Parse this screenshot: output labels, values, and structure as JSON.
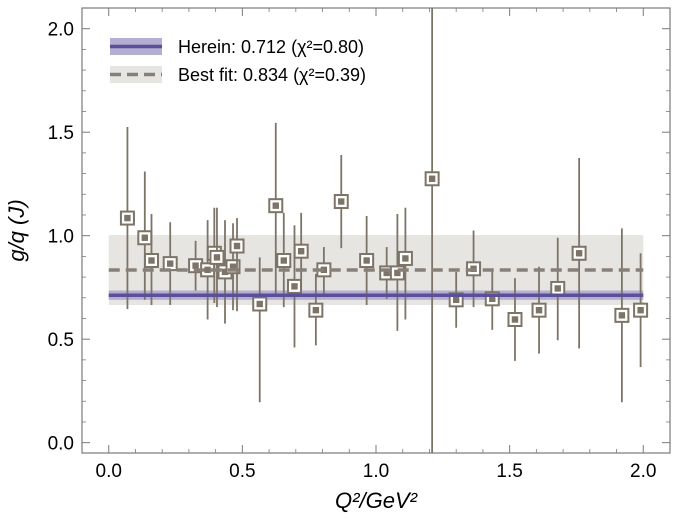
{
  "chart_data": {
    "type": "scatter",
    "xlabel": "Q²/GeV²",
    "ylabel": "g/q (J)",
    "xlim": [
      -0.1,
      2.1
    ],
    "ylim": [
      -0.05,
      2.1
    ],
    "x_ticks": [
      0.0,
      0.5,
      1.0,
      1.5,
      2.0
    ],
    "x_tick_labels": [
      "0.0",
      "0.5",
      "1.0",
      "1.5",
      "2.0"
    ],
    "y_ticks": [
      0.0,
      0.5,
      1.0,
      1.5,
      2.0
    ],
    "y_tick_labels": [
      "0.0",
      "0.5",
      "1.0",
      "1.5",
      "2.0"
    ],
    "grid": false,
    "legend_position": "top-left",
    "legend": [
      {
        "label": "Herein: 0.712 (χ²=0.80)",
        "style": "solid"
      },
      {
        "label": "Best fit: 0.834 (χ²=0.39)",
        "style": "dashed"
      }
    ],
    "bands": [
      {
        "name": "Herein",
        "value": 0.712,
        "low": 0.69,
        "high": 0.735,
        "style": "solid",
        "color": "#5b4f99",
        "band_color": "#b3aed2",
        "x_range": [
          0.0,
          2.0
        ]
      },
      {
        "name": "Best fit",
        "value": 0.834,
        "low": 0.665,
        "high": 1.003,
        "style": "dashed",
        "color": "#888078",
        "band_color": "#e6e5e2",
        "x_range": [
          0.0,
          2.0
        ]
      }
    ],
    "points": [
      {
        "x": 0.07,
        "y": 1.085,
        "err_low": 0.645,
        "err_high": 1.525
      },
      {
        "x": 0.135,
        "y": 0.99,
        "err_low": 0.69,
        "err_high": 1.31
      },
      {
        "x": 0.16,
        "y": 0.88,
        "err_low": 0.665,
        "err_high": 1.105
      },
      {
        "x": 0.23,
        "y": 0.865,
        "err_low": 0.665,
        "err_high": 1.065
      },
      {
        "x": 0.325,
        "y": 0.855,
        "err_low": 0.735,
        "err_high": 0.975
      },
      {
        "x": 0.37,
        "y": 0.835,
        "err_low": 0.595,
        "err_high": 1.075
      },
      {
        "x": 0.395,
        "y": 0.915,
        "err_low": 0.675,
        "err_high": 1.135
      },
      {
        "x": 0.405,
        "y": 0.895,
        "err_low": 0.655,
        "err_high": 1.135
      },
      {
        "x": 0.435,
        "y": 0.825,
        "err_low": 0.575,
        "err_high": 1.075
      },
      {
        "x": 0.465,
        "y": 0.85,
        "err_low": 0.64,
        "err_high": 1.06
      },
      {
        "x": 0.48,
        "y": 0.95,
        "err_low": 0.635,
        "err_high": 1.085
      },
      {
        "x": 0.565,
        "y": 0.67,
        "err_low": 0.195,
        "err_high": 0.895
      },
      {
        "x": 0.625,
        "y": 1.145,
        "err_low": 0.72,
        "err_high": 1.545
      },
      {
        "x": 0.655,
        "y": 0.88,
        "err_low": 0.655,
        "err_high": 1.11
      },
      {
        "x": 0.695,
        "y": 0.755,
        "err_low": 0.46,
        "err_high": 1.05
      },
      {
        "x": 0.72,
        "y": 0.925,
        "err_low": 0.735,
        "err_high": 1.11
      },
      {
        "x": 0.775,
        "y": 0.64,
        "err_low": 0.47,
        "err_high": 0.815
      },
      {
        "x": 0.805,
        "y": 0.835,
        "err_low": 0.715,
        "err_high": 0.945
      },
      {
        "x": 0.87,
        "y": 1.165,
        "err_low": 0.94,
        "err_high": 1.39
      },
      {
        "x": 0.965,
        "y": 0.88,
        "err_low": 0.665,
        "err_high": 1.095
      },
      {
        "x": 1.04,
        "y": 0.82,
        "err_low": 0.695,
        "err_high": 0.945
      },
      {
        "x": 1.08,
        "y": 0.82,
        "err_low": 0.54,
        "err_high": 1.105
      },
      {
        "x": 1.11,
        "y": 0.89,
        "err_low": 0.595,
        "err_high": 1.135
      },
      {
        "x": 1.21,
        "y": 1.275,
        "err_low": -0.05,
        "err_high": 2.1
      },
      {
        "x": 1.3,
        "y": 0.69,
        "err_low": 0.555,
        "err_high": 0.825
      },
      {
        "x": 1.365,
        "y": 0.84,
        "err_low": 0.655,
        "err_high": 1.025
      },
      {
        "x": 1.435,
        "y": 0.695,
        "err_low": 0.545,
        "err_high": 0.84
      },
      {
        "x": 1.52,
        "y": 0.595,
        "err_low": 0.395,
        "err_high": 0.795
      },
      {
        "x": 1.61,
        "y": 0.64,
        "err_low": 0.43,
        "err_high": 0.85
      },
      {
        "x": 1.68,
        "y": 0.745,
        "err_low": 0.495,
        "err_high": 0.99
      },
      {
        "x": 1.76,
        "y": 0.915,
        "err_low": 0.455,
        "err_high": 1.375
      },
      {
        "x": 1.92,
        "y": 0.615,
        "err_low": 0.195,
        "err_high": 1.035
      },
      {
        "x": 1.99,
        "y": 0.64,
        "err_low": 0.365,
        "err_high": 0.915
      }
    ]
  },
  "colors": {
    "frame": "#7a7a7a",
    "point": "#7d7468",
    "herein_line": "#5b4f99",
    "herein_band": "#b3aed2",
    "bestfit_line": "#888078",
    "bestfit_band": "#e6e5e2"
  }
}
